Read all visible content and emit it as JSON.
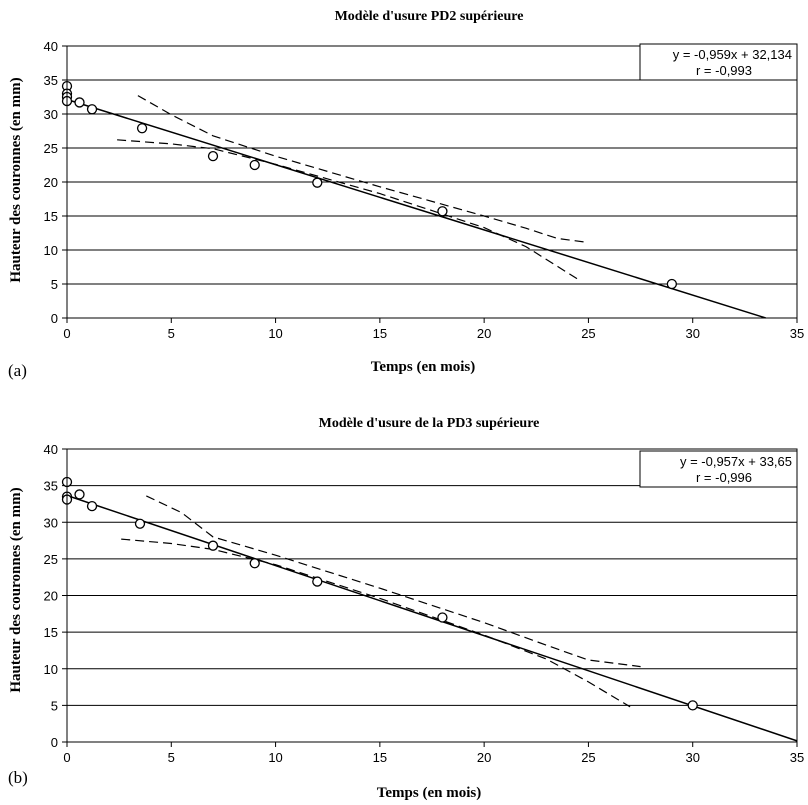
{
  "chart_data": [
    {
      "type": "scatter",
      "panel_label": "(a)",
      "title": "Modèle d'usure PD2 supérieure",
      "xlabel": "Temps (en mois)",
      "ylabel": "Hauteur des couronnes (en mm)",
      "xlim": [
        0,
        35
      ],
      "ylim": [
        0,
        40
      ],
      "xticks": [
        "0",
        "5",
        "10",
        "15",
        "20",
        "25",
        "30",
        "35"
      ],
      "yticks": [
        "0",
        "5",
        "10",
        "15",
        "20",
        "25",
        "30",
        "35",
        "40"
      ],
      "grid": "horizontal",
      "equation": "y = -0,959x + 32,134",
      "r_label": "r = -0,993",
      "regression": {
        "slope": -0.959,
        "intercept": 32.134,
        "x_range": [
          0,
          33.5
        ]
      },
      "points": [
        {
          "x": 0,
          "y": 34.1
        },
        {
          "x": 0,
          "y": 33.0
        },
        {
          "x": 0,
          "y": 32.5
        },
        {
          "x": 0,
          "y": 31.9
        },
        {
          "x": 0.6,
          "y": 31.7
        },
        {
          "x": 1.2,
          "y": 30.7
        },
        {
          "x": 3.6,
          "y": 27.9
        },
        {
          "x": 7.0,
          "y": 23.8
        },
        {
          "x": 9.0,
          "y": 22.5
        },
        {
          "x": 12.0,
          "y": 19.9
        },
        {
          "x": 18.0,
          "y": 15.7
        },
        {
          "x": 29.0,
          "y": 5.0
        }
      ],
      "confidence_upper": [
        {
          "x": 3.4,
          "y": 32.7
        },
        {
          "x": 5,
          "y": 29.9
        },
        {
          "x": 7,
          "y": 26.8
        },
        {
          "x": 10,
          "y": 23.8
        },
        {
          "x": 15,
          "y": 19.3
        },
        {
          "x": 20,
          "y": 15.0
        },
        {
          "x": 22,
          "y": 13.2
        },
        {
          "x": 23.5,
          "y": 11.7
        },
        {
          "x": 25,
          "y": 11.1
        }
      ],
      "confidence_lower": [
        {
          "x": 2.4,
          "y": 26.2
        },
        {
          "x": 5,
          "y": 25.6
        },
        {
          "x": 7,
          "y": 24.9
        },
        {
          "x": 10,
          "y": 22.6
        },
        {
          "x": 15,
          "y": 18.3
        },
        {
          "x": 20,
          "y": 13.3
        },
        {
          "x": 22,
          "y": 10.5
        },
        {
          "x": 24.6,
          "y": 5.5
        }
      ]
    },
    {
      "type": "scatter",
      "panel_label": "(b)",
      "title": "Modèle d'usure de la PD3 supérieure",
      "xlabel": "Temps (en mois)",
      "ylabel": "Hauteur des couronnes (en mm)",
      "xlim": [
        0,
        35
      ],
      "ylim": [
        0,
        40
      ],
      "xticks": [
        "0",
        "5",
        "10",
        "15",
        "20",
        "25",
        "30",
        "35"
      ],
      "yticks": [
        "0",
        "5",
        "10",
        "15",
        "20",
        "25",
        "30",
        "35",
        "40"
      ],
      "grid": "horizontal",
      "equation": "y = -0,957x + 33,65",
      "r_label": "r = -0,996",
      "regression": {
        "slope": -0.957,
        "intercept": 33.65,
        "x_range": [
          0,
          35
        ]
      },
      "points": [
        {
          "x": 0,
          "y": 35.5
        },
        {
          "x": 0,
          "y": 33.5
        },
        {
          "x": 0,
          "y": 33.1
        },
        {
          "x": 0.6,
          "y": 33.8
        },
        {
          "x": 1.2,
          "y": 32.2
        },
        {
          "x": 3.5,
          "y": 29.8
        },
        {
          "x": 7.0,
          "y": 26.8
        },
        {
          "x": 9.0,
          "y": 24.4
        },
        {
          "x": 12.0,
          "y": 21.9
        },
        {
          "x": 18.0,
          "y": 17.0
        },
        {
          "x": 30.0,
          "y": 5.0
        }
      ],
      "confidence_upper": [
        {
          "x": 3.8,
          "y": 33.6
        },
        {
          "x": 5.5,
          "y": 31.3
        },
        {
          "x": 7,
          "y": 28.0
        },
        {
          "x": 10,
          "y": 25.5
        },
        {
          "x": 15,
          "y": 21.0
        },
        {
          "x": 20,
          "y": 16.3
        },
        {
          "x": 23,
          "y": 13.2
        },
        {
          "x": 25,
          "y": 11.2
        },
        {
          "x": 27.5,
          "y": 10.3
        }
      ],
      "confidence_lower": [
        {
          "x": 2.6,
          "y": 27.7
        },
        {
          "x": 5,
          "y": 27.1
        },
        {
          "x": 7,
          "y": 26.3
        },
        {
          "x": 10,
          "y": 24.2
        },
        {
          "x": 15,
          "y": 19.6
        },
        {
          "x": 20,
          "y": 14.6
        },
        {
          "x": 23,
          "y": 11.3
        },
        {
          "x": 25,
          "y": 8.2
        },
        {
          "x": 27,
          "y": 4.8
        }
      ]
    }
  ]
}
